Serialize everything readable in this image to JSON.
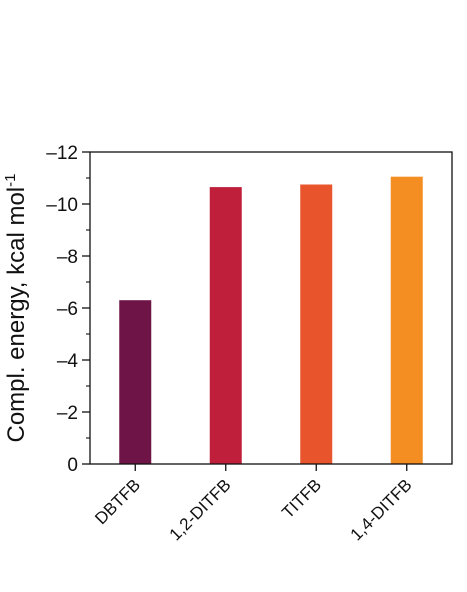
{
  "chart_data": {
    "type": "bar",
    "title": "",
    "xlabel": "",
    "ylabel": "Compl. energy, kcal mol",
    "ylabel_superscript": "-1",
    "categories": [
      "DBTFB",
      "1,2-DITFB",
      "TITFB",
      "1,4-DITFB"
    ],
    "values": [
      -6.3,
      -10.65,
      -10.75,
      -11.05
    ],
    "colors": [
      "#6e1447",
      "#bf1f3a",
      "#e8542b",
      "#f48d22"
    ],
    "ylim": [
      0,
      -12
    ],
    "y_axis_inverted": true,
    "yticks": [
      0,
      -2,
      -4,
      -6,
      -8,
      -10,
      -12
    ],
    "ytick_labels": [
      "0",
      "–2",
      "–4",
      "–6",
      "–8",
      "–10",
      "–12"
    ],
    "grid": false,
    "legend": "none"
  }
}
